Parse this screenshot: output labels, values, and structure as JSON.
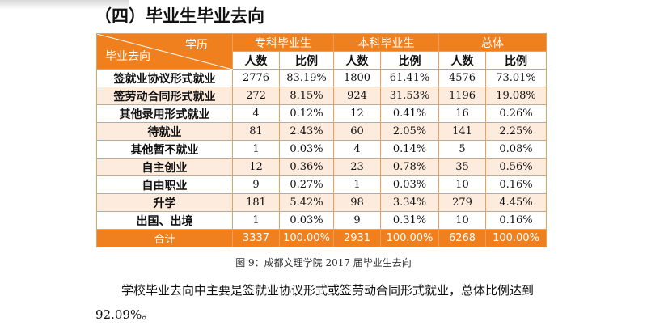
{
  "section": {
    "title": "（四）毕业生毕业去向"
  },
  "table": {
    "diag_top": "学历",
    "diag_bottom": "毕业去向",
    "groups": [
      "专科毕业生",
      "本科毕业生",
      "总体"
    ],
    "subheaders": [
      "人数",
      "比例",
      "人数",
      "比例",
      "人数",
      "比例"
    ],
    "rows": [
      {
        "label": "签就业协议形式就业",
        "values": [
          "2776",
          "83.19%",
          "1800",
          "61.41%",
          "4576",
          "73.01%"
        ]
      },
      {
        "label": "签劳动合同形式就业",
        "values": [
          "272",
          "8.15%",
          "924",
          "31.53%",
          "1196",
          "19.08%"
        ]
      },
      {
        "label": "其他录用形式就业",
        "values": [
          "4",
          "0.12%",
          "12",
          "0.41%",
          "16",
          "0.26%"
        ]
      },
      {
        "label": "待就业",
        "values": [
          "81",
          "2.43%",
          "60",
          "2.05%",
          "141",
          "2.25%"
        ]
      },
      {
        "label": "其他暂不就业",
        "values": [
          "1",
          "0.03%",
          "4",
          "0.14%",
          "5",
          "0.08%"
        ]
      },
      {
        "label": "自主创业",
        "values": [
          "12",
          "0.36%",
          "23",
          "0.78%",
          "35",
          "0.56%"
        ]
      },
      {
        "label": "自由职业",
        "values": [
          "9",
          "0.27%",
          "1",
          "0.03%",
          "10",
          "0.16%"
        ]
      },
      {
        "label": "升学",
        "values": [
          "181",
          "5.42%",
          "98",
          "3.34%",
          "279",
          "4.45%"
        ]
      },
      {
        "label": "出国、出境",
        "values": [
          "1",
          "0.03%",
          "9",
          "0.31%",
          "10",
          "0.16%"
        ]
      }
    ],
    "total": {
      "label": "合计",
      "values": [
        "3337",
        "100.00%",
        "2931",
        "100.00%",
        "6268",
        "100.00%"
      ]
    }
  },
  "caption": "图 9：成都文理学院 2017 届毕业生去向",
  "paragraph": "学校毕业去向中主要是签就业协议形式或签劳动合同形式就业，总体比例达到 92.09%。",
  "colors": {
    "header": "#f07f1e",
    "stripe": "#fdebdd",
    "border": "#e9a05f"
  }
}
